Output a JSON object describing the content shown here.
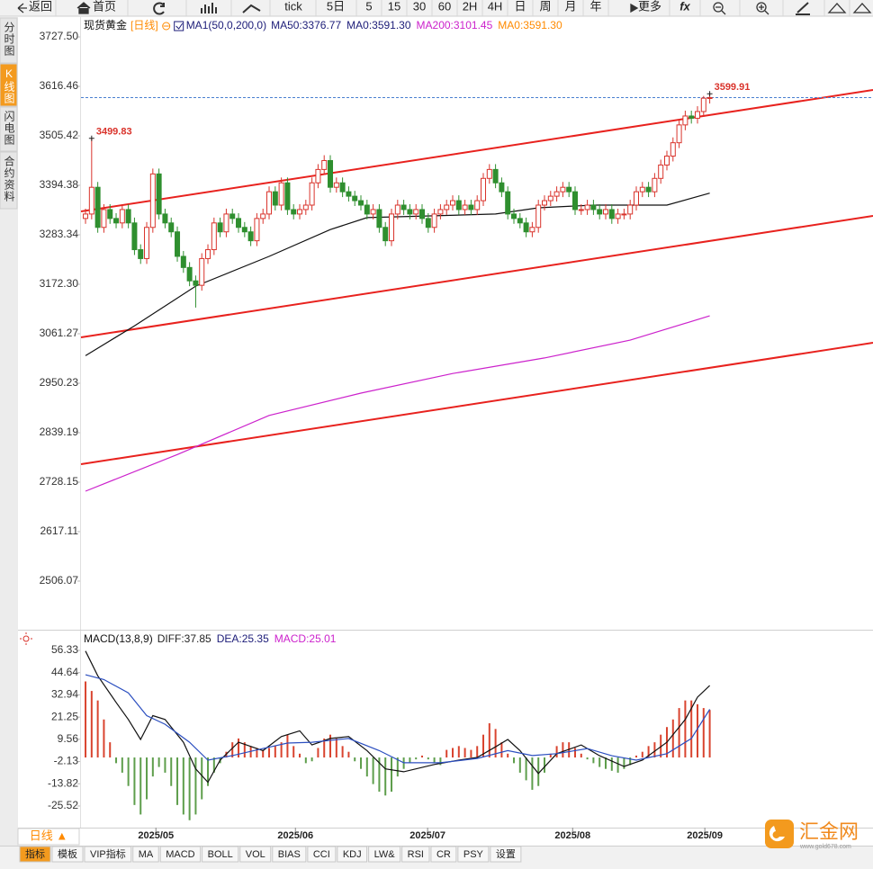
{
  "toolbar": [
    "返回",
    "首页",
    "tick",
    "5日",
    "5",
    "15",
    "30",
    "60",
    "2H",
    "4H",
    "日",
    "周",
    "月",
    "年",
    "更多",
    "fx"
  ],
  "sidebar": [
    "分时图",
    "K线图",
    "闪电图",
    "合约资料"
  ],
  "sidebar_active": 1,
  "period_selector": "日线 ▲",
  "tabs": [
    "指标",
    "模板",
    "VIP指标",
    "MA",
    "MACD",
    "BOLL",
    "VOL",
    "BIAS",
    "CCI",
    "KDJ",
    "LW&",
    "RSI",
    "CR",
    "PSY",
    "设置"
  ],
  "active_tab": 0,
  "brand": {
    "name": "汇金网",
    "url": "www.gold678.com"
  },
  "chart_data": [
    {
      "type": "candlestick",
      "title": "现货黄金",
      "period": "[日线]",
      "indicator": "MA1(50,0,200,0)",
      "legend": [
        {
          "text": "MA50:3376.77",
          "color": "#1c1c78"
        },
        {
          "text": "MA0:3591.30",
          "color": "#1c1c78"
        },
        {
          "text": "MA200:3101.45",
          "color": "#cc22cc"
        },
        {
          "text": "MA0:3591.30",
          "color": "#ff8a00"
        }
      ],
      "xlim": [
        -0.74,
        128.68
      ],
      "ylim": [
        2401,
        3770
      ],
      "yticks": [
        {
          "value": 3727.5,
          "label": "3727.50"
        },
        3616.46,
        3505.42,
        3394.38,
        3283.34,
        {
          "value": 3172.3,
          "label": "3172.30"
        },
        3061.27,
        2950.23,
        2839.19,
        2728.15,
        2617.11,
        2506.07
      ],
      "open": [
        3320,
        3330,
        3390,
        3300,
        3340,
        3320,
        3310,
        3340,
        3310,
        3250,
        3230,
        3300,
        3420,
        3330,
        3310,
        3290,
        3235,
        3210,
        3180,
        3170,
        3230,
        3250,
        3310,
        3290,
        3330,
        3320,
        3300,
        3290,
        3270,
        3320,
        3330,
        3380,
        3350,
        3400,
        3340,
        3330,
        3340,
        3350,
        3400,
        3430,
        3450,
        3390,
        3400,
        3380,
        3370,
        3360,
        3350,
        3330,
        3340,
        3300,
        3270,
        3330,
        3350,
        3340,
        3330,
        3340,
        3320,
        3300,
        3330,
        3340,
        3350,
        3360,
        3340,
        3350,
        3340,
        3360,
        3410,
        3430,
        3400,
        3380,
        3330,
        3320,
        3310,
        3290,
        3300,
        3350,
        3360,
        3370,
        3380,
        3390,
        3380,
        3340,
        3340,
        3350,
        3340,
        3330,
        3340,
        3320,
        3330,
        3330,
        3350,
        3380,
        3390,
        3380,
        3410,
        3440,
        3460,
        3490,
        3530,
        3550,
        3545,
        3560,
        3590
      ],
      "high": [
        3342,
        3499.83,
        3402,
        3352,
        3352,
        3332,
        3352,
        3352,
        3322,
        3262,
        3312,
        3432,
        3432,
        3342,
        3322,
        3302,
        3247,
        3222,
        3192,
        3242,
        3262,
        3322,
        3322,
        3342,
        3342,
        3332,
        3312,
        3302,
        3332,
        3342,
        3392,
        3392,
        3412,
        3412,
        3352,
        3352,
        3362,
        3412,
        3442,
        3462,
        3462,
        3412,
        3412,
        3392,
        3382,
        3372,
        3362,
        3352,
        3352,
        3312,
        3342,
        3362,
        3362,
        3352,
        3352,
        3352,
        3332,
        3342,
        3352,
        3362,
        3372,
        3372,
        3362,
        3362,
        3372,
        3422,
        3442,
        3442,
        3412,
        3392,
        3342,
        3332,
        3322,
        3312,
        3362,
        3372,
        3382,
        3392,
        3402,
        3402,
        3392,
        3352,
        3362,
        3362,
        3352,
        3352,
        3352,
        3342,
        3342,
        3362,
        3392,
        3402,
        3402,
        3422,
        3452,
        3472,
        3502,
        3542,
        3562,
        3562,
        3572,
        3595,
        3599.91
      ],
      "low": [
        3308,
        3318,
        3288,
        3288,
        3308,
        3298,
        3298,
        3298,
        3238,
        3218,
        3218,
        3288,
        3318,
        3298,
        3278,
        3223,
        3198,
        3168,
        3120,
        3158,
        3218,
        3238,
        3278,
        3278,
        3308,
        3288,
        3278,
        3258,
        3258,
        3308,
        3318,
        3338,
        3338,
        3328,
        3318,
        3318,
        3328,
        3338,
        3388,
        3418,
        3378,
        3378,
        3368,
        3358,
        3348,
        3338,
        3318,
        3318,
        3288,
        3258,
        3258,
        3318,
        3328,
        3318,
        3318,
        3308,
        3288,
        3288,
        3318,
        3328,
        3338,
        3328,
        3328,
        3328,
        3328,
        3348,
        3398,
        3388,
        3368,
        3318,
        3308,
        3298,
        3278,
        3278,
        3288,
        3338,
        3348,
        3358,
        3368,
        3368,
        3328,
        3328,
        3328,
        3328,
        3318,
        3318,
        3308,
        3308,
        3318,
        3318,
        3338,
        3368,
        3368,
        3368,
        3398,
        3428,
        3448,
        3478,
        3518,
        3533,
        3533,
        3548,
        3578
      ],
      "close": [
        3330,
        3390,
        3300,
        3340,
        3320,
        3310,
        3340,
        3310,
        3250,
        3230,
        3300,
        3420,
        3330,
        3310,
        3290,
        3235,
        3210,
        3180,
        3170,
        3230,
        3250,
        3310,
        3290,
        3330,
        3320,
        3300,
        3290,
        3270,
        3320,
        3330,
        3380,
        3350,
        3400,
        3340,
        3330,
        3340,
        3350,
        3400,
        3430,
        3450,
        3390,
        3400,
        3380,
        3370,
        3360,
        3350,
        3330,
        3340,
        3300,
        3270,
        3330,
        3350,
        3340,
        3330,
        3340,
        3320,
        3300,
        3330,
        3340,
        3350,
        3360,
        3340,
        3350,
        3340,
        3360,
        3410,
        3430,
        3400,
        3380,
        3330,
        3320,
        3310,
        3290,
        3300,
        3350,
        3360,
        3370,
        3380,
        3390,
        3380,
        3340,
        3340,
        3350,
        3340,
        3330,
        3340,
        3320,
        3330,
        3330,
        3350,
        3380,
        3390,
        3380,
        3410,
        3440,
        3460,
        3490,
        3530,
        3550,
        3545,
        3560,
        3590,
        3591.3
      ],
      "up_color": "#d9332b",
      "down_color": "#2f8f2f",
      "label_color": "#d9332b",
      "price_line_color": "#4a7fd0",
      "lines": [
        {
          "color": "#111111",
          "x": [
            0,
            8,
            18,
            30,
            40,
            46,
            57,
            67,
            74,
            83,
            95,
            102
          ],
          "values": [
            3012,
            3079,
            3168,
            3235,
            3295,
            3322,
            3326,
            3330,
            3344,
            3350,
            3350,
            3376.77
          ]
        },
        {
          "color": "#cc22cc",
          "x": [
            0,
            15,
            30,
            45,
            60,
            75,
            89,
            102
          ],
          "values": [
            2708,
            2790,
            2878,
            2928,
            2972,
            3007,
            3047,
            3101.45
          ]
        }
      ],
      "trend_lines": [
        {
          "color": "#e8221e",
          "x": [
            -0.74,
            128.68
          ],
          "values": [
            3335.8,
            3608.4
          ]
        },
        {
          "color": "#e8221e",
          "x": [
            -0.74,
            128.68
          ],
          "values": [
            3053.2,
            3325.7
          ]
        },
        {
          "color": "#e8221e",
          "x": [
            -0.74,
            128.68
          ],
          "values": [
            2768.5,
            3041.0
          ]
        }
      ]
    },
    {
      "type": "macd",
      "title": "MACD(13,8,9)",
      "legend": [
        {
          "text": "DIFF:37.85",
          "color": "#222222"
        },
        {
          "text": "DEA:25.35",
          "color": "#1c1c78"
        },
        {
          "text": "MACD:25.01",
          "color": "#cc22cc"
        }
      ],
      "xlim": [
        -0.74,
        128.68
      ],
      "xticks": [
        {
          "value": 11.5,
          "label": "2025/05"
        },
        {
          "value": 34.3,
          "label": "2025/06"
        },
        {
          "value": 55.9,
          "label": "2025/07"
        },
        {
          "value": 79.6,
          "label": "2025/08"
        },
        {
          "value": 101.2,
          "label": "2025/09"
        }
      ],
      "ylim": [
        -36.9,
        64.85
      ],
      "yticks": [
        56.33,
        44.64,
        32.94,
        21.25,
        9.56,
        -2.13,
        -13.82,
        -25.52
      ],
      "values": [
        40,
        35,
        30,
        20,
        8,
        -3,
        -8,
        -15,
        -25,
        -30,
        -22,
        -10,
        -5,
        -8,
        -15,
        -25,
        -30,
        -33,
        -30,
        -22,
        -15,
        -8,
        -3,
        3,
        8,
        10,
        8,
        6,
        5,
        4,
        5,
        6,
        8,
        12,
        6,
        2,
        -3,
        -2,
        5,
        10,
        12,
        10,
        6,
        3,
        -2,
        -6,
        -10,
        -14,
        -18,
        -20,
        -18,
        -10,
        -6,
        -3,
        -1,
        1,
        -1,
        -3,
        -4,
        4,
        5,
        6,
        5,
        4,
        6,
        12,
        18,
        15,
        8,
        2,
        -3,
        -8,
        -12,
        -17,
        -15,
        -8,
        2,
        6,
        8,
        8,
        5,
        2,
        -1,
        -3,
        -5,
        -6,
        -7,
        -8,
        -6,
        -4,
        1,
        3,
        6,
        8,
        12,
        16,
        20,
        26,
        30,
        30,
        28,
        26,
        25.01
      ],
      "up_color": "#d9442f",
      "down_color": "#5e9e4c",
      "lines": [
        {
          "color": "#111111",
          "x": [
            0,
            2,
            5,
            7,
            9,
            11,
            13,
            16,
            18,
            20,
            22,
            25,
            29,
            32,
            35,
            37,
            40,
            43,
            46,
            49,
            52,
            57,
            61,
            64,
            67,
            69,
            71,
            74,
            77,
            81,
            84,
            88,
            91,
            95,
            98,
            100,
            102
          ],
          "values": [
            56,
            43,
            29,
            20,
            9.5,
            22,
            20,
            8,
            -6,
            -13,
            -1.4,
            8,
            3.6,
            11,
            14,
            6.6,
            10,
            11,
            3.6,
            -6,
            -7.5,
            -3.7,
            -1.4,
            0,
            5.6,
            9.5,
            3.6,
            -8.4,
            2,
            6.6,
            0.9,
            -4.7,
            -1.4,
            8,
            20,
            31.7,
            37.85
          ]
        },
        {
          "color": "#2c4fc0",
          "x": [
            0,
            3,
            7,
            10,
            13,
            17,
            20,
            24,
            29,
            33,
            37,
            43,
            48,
            52,
            58,
            64,
            69,
            73,
            77,
            82,
            86,
            90,
            95,
            99,
            102
          ],
          "values": [
            43.5,
            41,
            34,
            22,
            17.5,
            8,
            -1.4,
            1,
            4.7,
            7.6,
            8,
            10,
            3.6,
            -2.8,
            -2.8,
            -0.5,
            3.6,
            1,
            2,
            4.7,
            0.9,
            -1.4,
            2,
            10,
            25.35
          ]
        }
      ]
    }
  ]
}
